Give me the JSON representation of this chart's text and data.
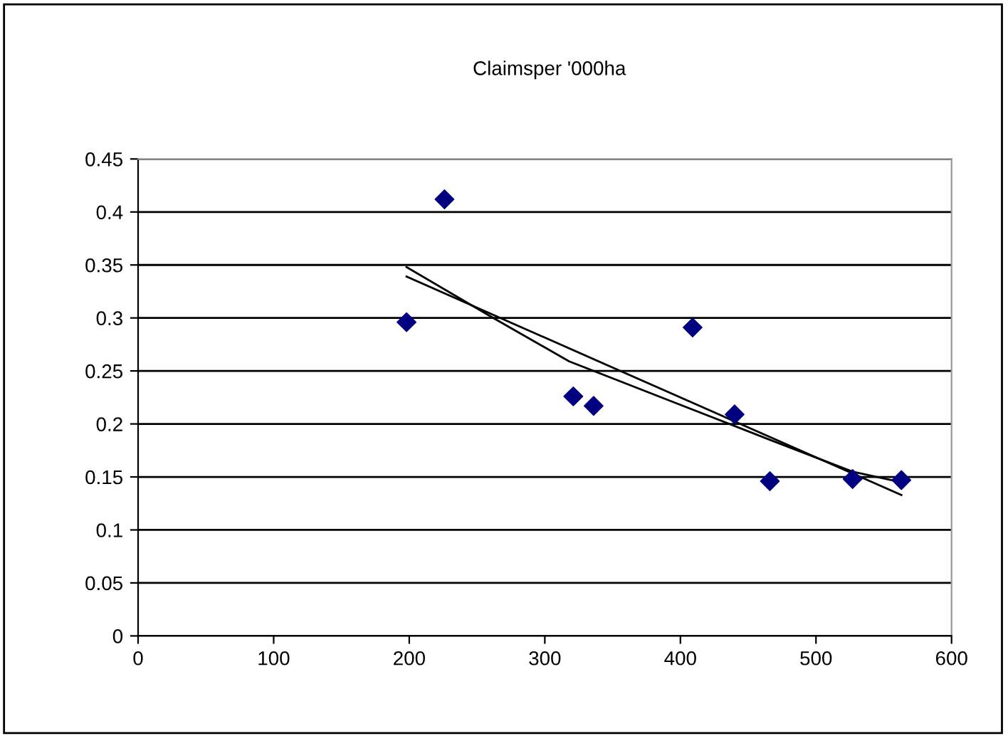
{
  "chart_data": {
    "type": "scatter",
    "title": "Claimsper '000ha",
    "xlim": [
      0,
      600
    ],
    "xticks": [
      0,
      100,
      200,
      300,
      400,
      500,
      600
    ],
    "ylim": [
      0,
      0.45
    ],
    "yticks": [
      {
        "value": 0,
        "label": "0"
      },
      {
        "value": 0.05,
        "label": "0.05"
      },
      {
        "value": 0.1,
        "label": "0.1"
      },
      {
        "value": 0.15,
        "label": "0.15"
      },
      {
        "value": 0.2,
        "label": "0.2"
      },
      {
        "value": 0.25,
        "label": "0.25"
      },
      {
        "value": 0.3,
        "label": "0.3"
      },
      {
        "value": 0.35,
        "label": "0.35"
      },
      {
        "value": 0.4,
        "label": "0.4"
      },
      {
        "value": 0.45,
        "label": "0.45"
      }
    ],
    "grid": "y",
    "series": [
      {
        "marker": "diamond",
        "color": "#000080",
        "x": [
          198,
          226,
          321,
          336,
          409,
          440,
          466,
          527,
          563
        ],
        "values": [
          0.296,
          0.412,
          0.226,
          0.217,
          0.291,
          0.209,
          0.146,
          0.148,
          0.147
        ]
      },
      {
        "type": "line",
        "marker": "none",
        "color": "#000000",
        "x": [
          198,
          563
        ],
        "values": [
          0.339,
          0.133
        ]
      },
      {
        "type": "line",
        "marker": "none",
        "color": "#000000",
        "x": [
          198,
          262,
          318,
          400,
          466,
          527,
          563
        ],
        "values": [
          0.348,
          0.3,
          0.259,
          0.218,
          0.185,
          0.155,
          0.145
        ]
      }
    ]
  }
}
